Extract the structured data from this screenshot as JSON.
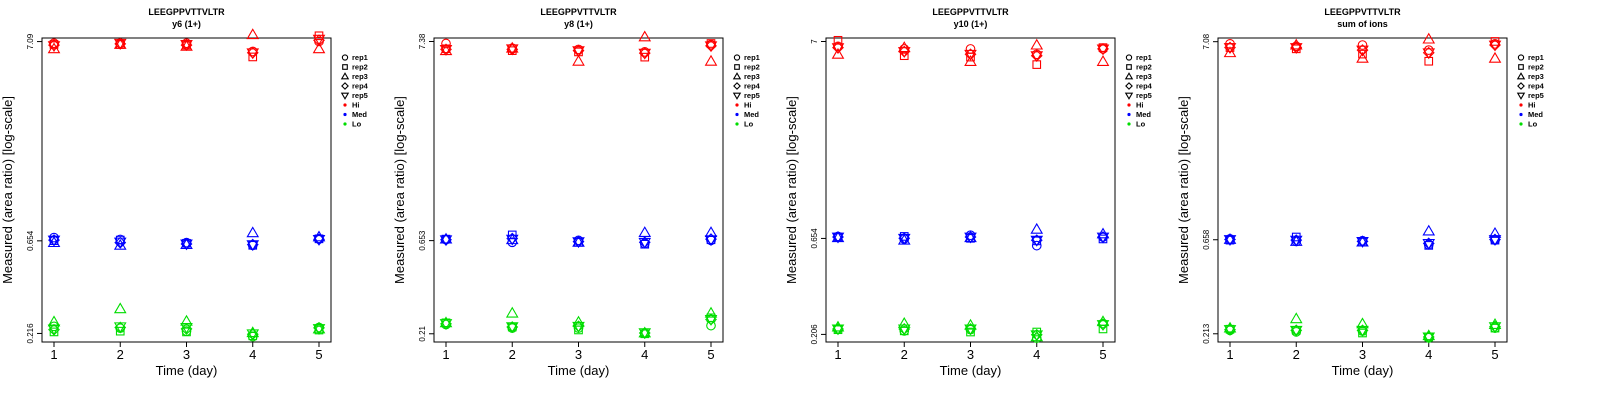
{
  "chart_data": [
    {
      "type": "scatter",
      "title": "LEEGPPVTTVLTR",
      "subtitle": "y6 (1+)",
      "xlabel": "Time (day)",
      "ylabel": "Measured (area ratio) [log-scale]",
      "x_ticks": [
        "1",
        "2",
        "3",
        "4",
        "5"
      ],
      "y_ticks": [
        {
          "value": 7.09,
          "label": "7.09"
        },
        {
          "value": 0.654,
          "label": "0.654"
        },
        {
          "value": 0.216,
          "label": "0.216"
        }
      ],
      "ylim": [
        0.195,
        7.4
      ],
      "legend": [
        "rep1",
        "rep2",
        "rep3",
        "rep4",
        "rep5",
        "Hi",
        "Med",
        "Lo"
      ],
      "series": [
        {
          "name": "Hi",
          "color": "#ff0000",
          "points": {
            "rep1": [
              6.95,
              6.95,
              6.95,
              6.3,
              7.1
            ],
            "rep2": [
              6.85,
              6.85,
              6.8,
              5.9,
              7.6
            ],
            "rep3": [
              6.5,
              6.85,
              6.7,
              7.7,
              6.5
            ],
            "rep4": [
              6.8,
              6.9,
              6.8,
              6.2,
              7.2
            ],
            "rep5": [
              6.75,
              6.95,
              6.85,
              6.2,
              7.3
            ]
          }
        },
        {
          "name": "Med",
          "color": "#0000ff",
          "points": {
            "rep1": [
              0.68,
              0.665,
              0.64,
              0.62,
              0.67
            ],
            "rep2": [
              0.655,
              0.66,
              0.635,
              0.62,
              0.67
            ],
            "rep3": [
              0.64,
              0.62,
              0.625,
              0.72,
              0.685
            ],
            "rep4": [
              0.66,
              0.64,
              0.63,
              0.625,
              0.665
            ],
            "rep5": [
              0.66,
              0.645,
              0.63,
              0.625,
              0.665
            ]
          }
        },
        {
          "name": "Lo",
          "color": "#00dd00",
          "points": {
            "rep1": [
              0.235,
              0.23,
              0.222,
              0.208,
              0.232
            ],
            "rep2": [
              0.22,
              0.222,
              0.22,
              0.21,
              0.225
            ],
            "rep3": [
              0.248,
              0.29,
              0.25,
              0.218,
              0.228
            ],
            "rep4": [
              0.226,
              0.232,
              0.228,
              0.214,
              0.231
            ],
            "rep5": [
              0.228,
              0.234,
              0.232,
              0.215,
              0.229
            ]
          }
        }
      ]
    },
    {
      "type": "scatter",
      "title": "LEEGPPVTTVLTR",
      "subtitle": "y8 (1+)",
      "xlabel": "Time (day)",
      "ylabel": "Measured (area ratio) [log-scale]",
      "x_ticks": [
        "1",
        "2",
        "3",
        "4",
        "5"
      ],
      "y_ticks": [
        {
          "value": 7.38,
          "label": "7.38"
        },
        {
          "value": 0.653,
          "label": "0.653"
        },
        {
          "value": 0.21,
          "label": "0.21"
        }
      ],
      "ylim": [
        0.19,
        7.7
      ],
      "legend": [
        "rep1",
        "rep2",
        "rep3",
        "rep4",
        "rep5",
        "Hi",
        "Med",
        "Lo"
      ],
      "series": [
        {
          "name": "Hi",
          "color": "#ff0000",
          "points": {
            "rep1": [
              7.2,
              6.8,
              6.7,
              6.5,
              7.1
            ],
            "rep2": [
              6.75,
              6.6,
              6.5,
              6.1,
              7.2
            ],
            "rep3": [
              6.6,
              6.8,
              5.8,
              7.8,
              5.8
            ],
            "rep4": [
              6.7,
              6.7,
              6.6,
              6.4,
              7.0
            ],
            "rep5": [
              6.7,
              6.75,
              6.6,
              6.4,
              7.0
            ]
          }
        },
        {
          "name": "Med",
          "color": "#0000ff",
          "points": {
            "rep1": [
              0.66,
              0.64,
              0.655,
              0.63,
              0.655
            ],
            "rep2": [
              0.665,
              0.7,
              0.64,
              0.625,
              0.66
            ],
            "rep3": [
              0.665,
              0.66,
              0.64,
              0.72,
              0.72
            ],
            "rep4": [
              0.66,
              0.67,
              0.645,
              0.64,
              0.665
            ],
            "rep5": [
              0.66,
              0.665,
              0.645,
              0.64,
              0.66
            ]
          }
        },
        {
          "name": "Lo",
          "color": "#00dd00",
          "points": {
            "rep1": [
              0.235,
              0.225,
              0.225,
              0.212,
              0.232
            ],
            "rep2": [
              0.24,
              0.228,
              0.22,
              0.21,
              0.255
            ],
            "rep3": [
              0.24,
              0.27,
              0.242,
              0.212,
              0.27
            ],
            "rep4": [
              0.237,
              0.228,
              0.23,
              0.212,
              0.25
            ],
            "rep5": [
              0.238,
              0.229,
              0.23,
              0.213,
              0.25
            ]
          }
        }
      ]
    },
    {
      "type": "scatter",
      "title": "LEEGPPVTTVLTR",
      "subtitle": "y10 (1+)",
      "xlabel": "Time (day)",
      "ylabel": "Measured (area ratio) [log-scale]",
      "x_ticks": [
        "1",
        "2",
        "3",
        "4",
        "5"
      ],
      "y_ticks": [
        {
          "value": 7,
          "label": "7"
        },
        {
          "value": 0.654,
          "label": "0.654"
        },
        {
          "value": 0.206,
          "label": "0.206"
        }
      ],
      "ylim": [
        0.188,
        7.3
      ],
      "legend": [
        "rep1",
        "rep2",
        "rep3",
        "rep4",
        "rep5",
        "Hi",
        "Med",
        "Lo"
      ],
      "series": [
        {
          "name": "Hi",
          "color": "#ff0000",
          "points": {
            "rep1": [
              6.6,
              6.4,
              6.4,
              6.0,
              6.4
            ],
            "rep2": [
              7.1,
              5.9,
              5.8,
              5.3,
              6.5
            ],
            "rep3": [
              6.0,
              6.5,
              5.5,
              6.7,
              5.5
            ],
            "rep4": [
              6.5,
              6.2,
              6.0,
              5.9,
              6.4
            ],
            "rep5": [
              6.5,
              6.2,
              6.0,
              5.9,
              6.4
            ]
          }
        },
        {
          "name": "Med",
          "color": "#0000ff",
          "points": {
            "rep1": [
              0.67,
              0.65,
              0.68,
              0.6,
              0.665
            ],
            "rep2": [
              0.665,
              0.67,
              0.655,
              0.635,
              0.65
            ],
            "rep3": [
              0.66,
              0.64,
              0.66,
              0.73,
              0.69
            ],
            "rep4": [
              0.665,
              0.655,
              0.665,
              0.64,
              0.665
            ],
            "rep5": [
              0.665,
              0.655,
              0.665,
              0.64,
              0.665
            ]
          }
        },
        {
          "name": "Lo",
          "color": "#00dd00",
          "points": {
            "rep1": [
              0.22,
              0.215,
              0.218,
              0.197,
              0.235
            ],
            "rep2": [
              0.218,
              0.215,
              0.212,
              0.212,
              0.22
            ],
            "rep3": [
              0.225,
              0.235,
              0.23,
              0.2,
              0.24
            ],
            "rep4": [
              0.22,
              0.22,
              0.22,
              0.205,
              0.232
            ],
            "rep5": [
              0.22,
              0.22,
              0.22,
              0.205,
              0.232
            ]
          }
        }
      ]
    },
    {
      "type": "scatter",
      "title": "LEEGPPVTTVLTR",
      "subtitle": "sum of ions",
      "xlabel": "Time (day)",
      "ylabel": "Measured (area ratio) [log-scale]",
      "x_ticks": [
        "1",
        "2",
        "3",
        "4",
        "5"
      ],
      "y_ticks": [
        {
          "value": 7.08,
          "label": "7.08"
        },
        {
          "value": 0.658,
          "label": "0.658"
        },
        {
          "value": 0.213,
          "label": "0.213"
        }
      ],
      "ylim": [
        0.193,
        7.4
      ],
      "legend": [
        "rep1",
        "rep2",
        "rep3",
        "rep4",
        "rep5",
        "Hi",
        "Med",
        "Lo"
      ],
      "series": [
        {
          "name": "Hi",
          "color": "#ff0000",
          "points": {
            "rep1": [
              6.9,
              6.7,
              6.8,
              6.4,
              6.9
            ],
            "rep2": [
              6.6,
              6.5,
              6.1,
              5.6,
              7.1
            ],
            "rep3": [
              6.2,
              6.8,
              5.8,
              7.3,
              5.8
            ],
            "rep4": [
              6.6,
              6.6,
              6.4,
              6.2,
              6.8
            ],
            "rep5": [
              6.6,
              6.6,
              6.4,
              6.2,
              6.8
            ]
          }
        },
        {
          "name": "Med",
          "color": "#0000ff",
          "points": {
            "rep1": [
              0.665,
              0.645,
              0.65,
              0.62,
              0.655
            ],
            "rep2": [
              0.655,
              0.68,
              0.64,
              0.615,
              0.655
            ],
            "rep3": [
              0.66,
              0.645,
              0.64,
              0.73,
              0.71
            ],
            "rep4": [
              0.66,
              0.655,
              0.645,
              0.63,
              0.66
            ],
            "rep5": [
              0.66,
              0.655,
              0.645,
              0.63,
              0.66
            ]
          }
        },
        {
          "name": "Lo",
          "color": "#00dd00",
          "points": {
            "rep1": [
              0.222,
              0.218,
              0.22,
              0.203,
              0.228
            ],
            "rep2": [
              0.225,
              0.222,
              0.215,
              0.205,
              0.228
            ],
            "rep3": [
              0.228,
              0.255,
              0.24,
              0.208,
              0.238
            ],
            "rep4": [
              0.224,
              0.222,
              0.222,
              0.205,
              0.232
            ],
            "rep5": [
              0.224,
              0.222,
              0.222,
              0.205,
              0.232
            ]
          }
        }
      ]
    }
  ]
}
